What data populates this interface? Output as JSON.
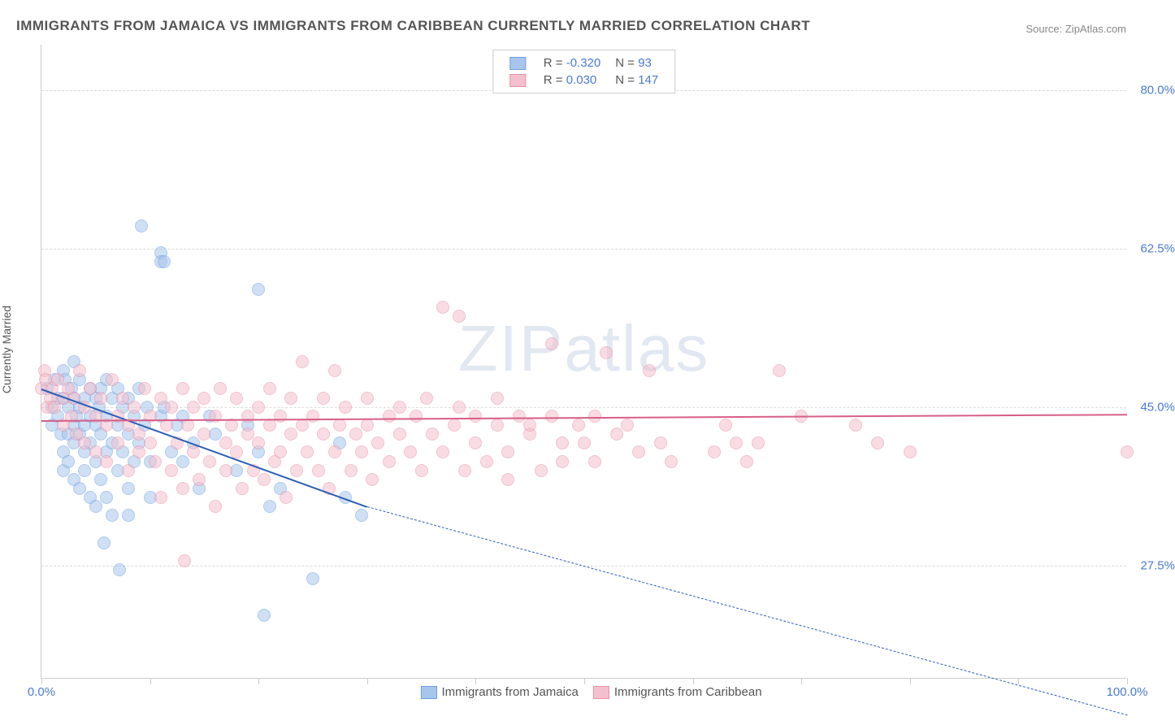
{
  "title": "IMMIGRANTS FROM JAMAICA VS IMMIGRANTS FROM CARIBBEAN CURRENTLY MARRIED CORRELATION CHART",
  "source": "Source: ZipAtlas.com",
  "ylabel": "Currently Married",
  "watermark": "ZIPatlas",
  "chart": {
    "type": "scatter",
    "xlim": [
      0,
      100
    ],
    "ylim": [
      15,
      85
    ],
    "yticks": [
      {
        "v": 27.5,
        "label": "27.5%"
      },
      {
        "v": 45.0,
        "label": "45.0%"
      },
      {
        "v": 62.5,
        "label": "62.5%"
      },
      {
        "v": 80.0,
        "label": "80.0%"
      }
    ],
    "xticks_minor": [
      0,
      10,
      20,
      30,
      40,
      50,
      60,
      70,
      80,
      90,
      100
    ],
    "xticks_label": [
      {
        "v": 0,
        "label": "0.0%"
      },
      {
        "v": 100,
        "label": "100.0%"
      }
    ],
    "background": "#ffffff",
    "grid_color": "#dddddd"
  },
  "series": [
    {
      "name": "Immigrants from Jamaica",
      "color_fill": "#a8c5ec",
      "color_stroke": "#6f9fe0",
      "line_color": "#2d5fb5",
      "R": "-0.320",
      "N": "93",
      "trend_solid": {
        "x1": 0,
        "y1": 47,
        "x2": 30,
        "y2": 34
      },
      "trend_dash": {
        "x1": 30,
        "y1": 34,
        "x2": 100,
        "y2": 11
      },
      "points": [
        [
          0.5,
          47
        ],
        [
          1,
          45
        ],
        [
          1,
          43
        ],
        [
          1.2,
          48
        ],
        [
          1.5,
          46
        ],
        [
          1.5,
          44
        ],
        [
          1.8,
          42
        ],
        [
          2,
          49
        ],
        [
          2,
          46
        ],
        [
          2,
          40
        ],
        [
          2,
          38
        ],
        [
          2.2,
          48
        ],
        [
          2.5,
          45
        ],
        [
          2.5,
          42
        ],
        [
          2.5,
          39
        ],
        [
          2.8,
          47
        ],
        [
          3,
          50
        ],
        [
          3,
          46
        ],
        [
          3,
          43
        ],
        [
          3,
          41
        ],
        [
          3,
          37
        ],
        [
          3.2,
          44
        ],
        [
          3.5,
          48
        ],
        [
          3.5,
          45
        ],
        [
          3.5,
          42
        ],
        [
          3.5,
          36
        ],
        [
          4,
          46
        ],
        [
          4,
          43
        ],
        [
          4,
          40
        ],
        [
          4,
          38
        ],
        [
          4.5,
          47
        ],
        [
          4.5,
          44
        ],
        [
          4.5,
          41
        ],
        [
          4.5,
          35
        ],
        [
          5,
          46
        ],
        [
          5,
          43
        ],
        [
          5,
          39
        ],
        [
          5,
          34
        ],
        [
          5.3,
          45
        ],
        [
          5.5,
          47
        ],
        [
          5.5,
          42
        ],
        [
          5.5,
          37
        ],
        [
          5.8,
          30
        ],
        [
          6,
          48
        ],
        [
          6,
          44
        ],
        [
          6,
          40
        ],
        [
          6,
          35
        ],
        [
          6.5,
          46
        ],
        [
          6.5,
          41
        ],
        [
          6.5,
          33
        ],
        [
          7,
          47
        ],
        [
          7,
          43
        ],
        [
          7,
          38
        ],
        [
          7.2,
          27
        ],
        [
          7.5,
          45
        ],
        [
          7.5,
          40
        ],
        [
          8,
          46
        ],
        [
          8,
          42
        ],
        [
          8,
          36
        ],
        [
          8,
          33
        ],
        [
          8.5,
          44
        ],
        [
          8.5,
          39
        ],
        [
          9,
          47
        ],
        [
          9,
          41
        ],
        [
          9.2,
          65
        ],
        [
          9.5,
          43
        ],
        [
          9.7,
          45
        ],
        [
          10,
          39
        ],
        [
          10,
          35
        ],
        [
          11,
          62
        ],
        [
          11,
          61
        ],
        [
          11,
          44
        ],
        [
          11.3,
          45
        ],
        [
          11.3,
          61
        ],
        [
          12,
          40
        ],
        [
          12.5,
          43
        ],
        [
          13,
          39
        ],
        [
          13,
          44
        ],
        [
          14,
          41
        ],
        [
          14.5,
          36
        ],
        [
          15.5,
          44
        ],
        [
          16,
          42
        ],
        [
          18,
          38
        ],
        [
          19,
          43
        ],
        [
          20,
          58
        ],
        [
          20,
          40
        ],
        [
          20.5,
          22
        ],
        [
          21,
          34
        ],
        [
          22,
          36
        ],
        [
          25,
          26
        ],
        [
          27.5,
          41
        ],
        [
          28,
          35
        ],
        [
          29.5,
          33
        ]
      ]
    },
    {
      "name": "Immigrants from Caribbean",
      "color_fill": "#f5c0cd",
      "color_stroke": "#e890a8",
      "line_color": "#d85e88",
      "R": "0.030",
      "N": "147",
      "trend_solid": {
        "x1": 0,
        "y1": 43.5,
        "x2": 100,
        "y2": 44.2
      },
      "points": [
        [
          0,
          47
        ],
        [
          0.3,
          49
        ],
        [
          0.4,
          48
        ],
        [
          0.5,
          45
        ],
        [
          0.8,
          46
        ],
        [
          1,
          47
        ],
        [
          1.2,
          45
        ],
        [
          1.5,
          48
        ],
        [
          2,
          46
        ],
        [
          2,
          43
        ],
        [
          2.5,
          47
        ],
        [
          2.8,
          44
        ],
        [
          3,
          46
        ],
        [
          3.2,
          42
        ],
        [
          3.5,
          49
        ],
        [
          4,
          45
        ],
        [
          4,
          41
        ],
        [
          4.5,
          47
        ],
        [
          5,
          44
        ],
        [
          5,
          40
        ],
        [
          5.5,
          46
        ],
        [
          6,
          43
        ],
        [
          6,
          39
        ],
        [
          6.5,
          48
        ],
        [
          7,
          44
        ],
        [
          7,
          41
        ],
        [
          7.5,
          46
        ],
        [
          8,
          43
        ],
        [
          8,
          38
        ],
        [
          8.5,
          45
        ],
        [
          9,
          42
        ],
        [
          9,
          40
        ],
        [
          9.5,
          47
        ],
        [
          10,
          44
        ],
        [
          10,
          41
        ],
        [
          10.5,
          39
        ],
        [
          11,
          46
        ],
        [
          11,
          35
        ],
        [
          11.5,
          43
        ],
        [
          12,
          45
        ],
        [
          12,
          38
        ],
        [
          12.5,
          41
        ],
        [
          13,
          47
        ],
        [
          13,
          36
        ],
        [
          13.2,
          28
        ],
        [
          13.5,
          43
        ],
        [
          14,
          45
        ],
        [
          14,
          40
        ],
        [
          14.5,
          37
        ],
        [
          15,
          46
        ],
        [
          15,
          42
        ],
        [
          15.5,
          39
        ],
        [
          16,
          44
        ],
        [
          16,
          34
        ],
        [
          16.5,
          47
        ],
        [
          17,
          41
        ],
        [
          17,
          38
        ],
        [
          17.5,
          43
        ],
        [
          18,
          46
        ],
        [
          18,
          40
        ],
        [
          18.5,
          36
        ],
        [
          19,
          44
        ],
        [
          19,
          42
        ],
        [
          19.5,
          38
        ],
        [
          20,
          45
        ],
        [
          20,
          41
        ],
        [
          20.5,
          37
        ],
        [
          21,
          47
        ],
        [
          21,
          43
        ],
        [
          21.5,
          39
        ],
        [
          22,
          44
        ],
        [
          22,
          40
        ],
        [
          22.5,
          35
        ],
        [
          23,
          46
        ],
        [
          23,
          42
        ],
        [
          23.5,
          38
        ],
        [
          24,
          50
        ],
        [
          24,
          43
        ],
        [
          24.5,
          40
        ],
        [
          25,
          44
        ],
        [
          25.5,
          38
        ],
        [
          26,
          46
        ],
        [
          26,
          42
        ],
        [
          26.5,
          36
        ],
        [
          27,
          49
        ],
        [
          27,
          40
        ],
        [
          27.5,
          43
        ],
        [
          28,
          45
        ],
        [
          28.5,
          38
        ],
        [
          29,
          42
        ],
        [
          29.5,
          40
        ],
        [
          30,
          46
        ],
        [
          30,
          43
        ],
        [
          30.5,
          37
        ],
        [
          31,
          41
        ],
        [
          32,
          44
        ],
        [
          32,
          39
        ],
        [
          33,
          42
        ],
        [
          33,
          45
        ],
        [
          34,
          40
        ],
        [
          34.5,
          44
        ],
        [
          35,
          38
        ],
        [
          35.5,
          46
        ],
        [
          36,
          42
        ],
        [
          37,
          56
        ],
        [
          37,
          40
        ],
        [
          38,
          43
        ],
        [
          38.5,
          45
        ],
        [
          38.5,
          55
        ],
        [
          39,
          38
        ],
        [
          40,
          44
        ],
        [
          40,
          41
        ],
        [
          41,
          39
        ],
        [
          42,
          46
        ],
        [
          42,
          43
        ],
        [
          43,
          40
        ],
        [
          43,
          37
        ],
        [
          44,
          44
        ],
        [
          45,
          42
        ],
        [
          45,
          43
        ],
        [
          46,
          38
        ],
        [
          47,
          44
        ],
        [
          47,
          52
        ],
        [
          48,
          41
        ],
        [
          48,
          39
        ],
        [
          49.5,
          43
        ],
        [
          50,
          41
        ],
        [
          51,
          44
        ],
        [
          51,
          39
        ],
        [
          52,
          51
        ],
        [
          53,
          42
        ],
        [
          54,
          43
        ],
        [
          55,
          40
        ],
        [
          56,
          49
        ],
        [
          57,
          41
        ],
        [
          58,
          39
        ],
        [
          62,
          40
        ],
        [
          63,
          43
        ],
        [
          64,
          41
        ],
        [
          65,
          39
        ],
        [
          66,
          41
        ],
        [
          68,
          49
        ],
        [
          70,
          44
        ],
        [
          75,
          43
        ],
        [
          77,
          41
        ],
        [
          80,
          40
        ],
        [
          100,
          40
        ]
      ]
    }
  ],
  "bottom_legend": [
    {
      "label": "Immigrants from Jamaica",
      "fill": "#a8c5ec",
      "stroke": "#6f9fe0"
    },
    {
      "label": "Immigrants from Caribbean",
      "fill": "#f5c0cd",
      "stroke": "#e890a8"
    }
  ]
}
